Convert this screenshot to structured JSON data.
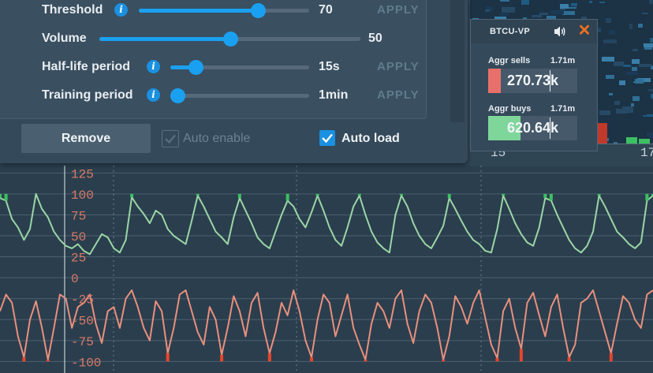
{
  "panel": {
    "rows": [
      {
        "label": "Threshold",
        "has_info": true,
        "value": "70",
        "fraction": 0.7,
        "apply": "APPLY"
      },
      {
        "label": "Volume",
        "has_info": false,
        "value": "50",
        "fraction": 0.5,
        "apply": ""
      },
      {
        "label": "Half-life period",
        "has_info": true,
        "value": "15s",
        "fraction": 0.18,
        "apply": "APPLY"
      },
      {
        "label": "Training period",
        "has_info": true,
        "value": "1min",
        "fraction": 0.05,
        "apply": "APPLY"
      }
    ],
    "remove_label": "Remove",
    "auto_enable": {
      "label": "Auto enable",
      "checked": true,
      "disabled": true
    },
    "auto_load": {
      "label": "Auto load",
      "checked": true
    }
  },
  "widget": {
    "title": "BTCU-VP",
    "sells": {
      "label": "Aggr sells",
      "total": "1.71m",
      "value": "270.73k",
      "fraction": 0.14,
      "color": "#e8706a"
    },
    "buys": {
      "label": "Aggr buys",
      "total": "1.71m",
      "value": "620.64k",
      "fraction": 0.36,
      "color": "#7fd69a"
    }
  },
  "heatmap_axis": {
    "ticks": [
      "15",
      "17"
    ]
  },
  "chart_data": {
    "type": "line",
    "y_ticks": [
      "125",
      "100",
      "75",
      "50",
      "25",
      "0",
      "-25",
      "-50",
      "-75",
      "-100"
    ],
    "ylim": [
      -110,
      130
    ],
    "series": [
      {
        "values": [
          95,
          92,
          70,
          60,
          45,
          58,
          100,
          82,
          72,
          55,
          45,
          38,
          35,
          40,
          32,
          28,
          40,
          52,
          48,
          35,
          30,
          45,
          96,
          85,
          76,
          65,
          80,
          75,
          58,
          50,
          45,
          40,
          68,
          98,
          85,
          70,
          55,
          48,
          40,
          72,
          95,
          80,
          65,
          48,
          40,
          35,
          55,
          75,
          92,
          85,
          70,
          60,
          78,
          98,
          80,
          60,
          45,
          38,
          60,
          85,
          98,
          75,
          55,
          42,
          35,
          30,
          75,
          98,
          85,
          65,
          50,
          40,
          35,
          48,
          62,
          95,
          82,
          68,
          55,
          45,
          40,
          32,
          30,
          58,
          98,
          82,
          65,
          52,
          42,
          38,
          60,
          95,
          92,
          75,
          60,
          45,
          35,
          30,
          38,
          55,
          98,
          85,
          70,
          55,
          48,
          40,
          35,
          42,
          92,
          98
        ],
        "color_light": "#9ad6a6",
        "color_dark": "#3cc062"
      },
      {
        "values": [
          -40,
          -20,
          -30,
          -70,
          -95,
          -50,
          -28,
          -60,
          -98,
          -60,
          -20,
          -25,
          -60,
          -35,
          -30,
          -20,
          -55,
          -78,
          -40,
          -35,
          -60,
          -25,
          -15,
          -35,
          -60,
          -75,
          -28,
          -40,
          -90,
          -60,
          -20,
          -15,
          -40,
          -65,
          -80,
          -35,
          -50,
          -92,
          -60,
          -22,
          -40,
          -70,
          -30,
          -18,
          -60,
          -90,
          -65,
          -30,
          -45,
          -15,
          -40,
          -75,
          -95,
          -50,
          -20,
          -30,
          -70,
          -45,
          -20,
          -60,
          -80,
          -98,
          -55,
          -30,
          -40,
          -60,
          -25,
          -15,
          -55,
          -78,
          -40,
          -20,
          -30,
          -60,
          -98,
          -70,
          -22,
          -35,
          -55,
          -30,
          -15,
          -48,
          -80,
          -96,
          -40,
          -25,
          -60,
          -85,
          -30,
          -18,
          -45,
          -70,
          -35,
          -20,
          -60,
          -95,
          -80,
          -30,
          -25,
          -15,
          -40,
          -65,
          -90,
          -55,
          -22,
          -30,
          -50,
          -60,
          -20,
          -15
        ],
        "color_light": "#e8907e",
        "color_dark": "#e8452c"
      }
    ]
  }
}
